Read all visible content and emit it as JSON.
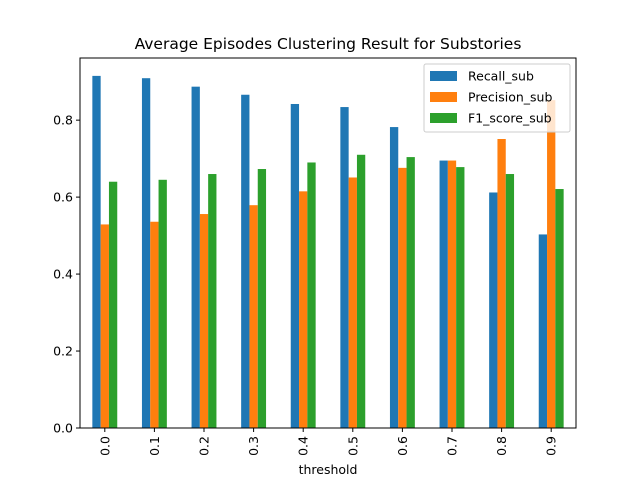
{
  "chart_data": {
    "type": "bar",
    "title": "Average Episodes Clustering Result for Substories",
    "xlabel": "threshold",
    "ylabel": "",
    "categories": [
      "0.0",
      "0.1",
      "0.2",
      "0.3",
      "0.4",
      "0.5",
      "0.6",
      "0.7",
      "0.8",
      "0.9"
    ],
    "series": [
      {
        "name": "Recall_sub",
        "color": "#1f77b4",
        "values": [
          0.915,
          0.909,
          0.887,
          0.866,
          0.842,
          0.834,
          0.782,
          0.695,
          0.612,
          0.503
        ]
      },
      {
        "name": "Precision_sub",
        "color": "#ff7f0e",
        "values": [
          0.529,
          0.536,
          0.556,
          0.579,
          0.615,
          0.651,
          0.676,
          0.695,
          0.751,
          0.852
        ]
      },
      {
        "name": "F1_score_sub",
        "color": "#2ca02c",
        "values": [
          0.64,
          0.645,
          0.66,
          0.673,
          0.69,
          0.71,
          0.704,
          0.678,
          0.66,
          0.621
        ]
      }
    ],
    "ylim": [
      0,
      0.9615
    ],
    "yticks": [
      "0.0",
      "0.2",
      "0.4",
      "0.6",
      "0.8"
    ],
    "grid": false,
    "legend_position": "top-right"
  }
}
